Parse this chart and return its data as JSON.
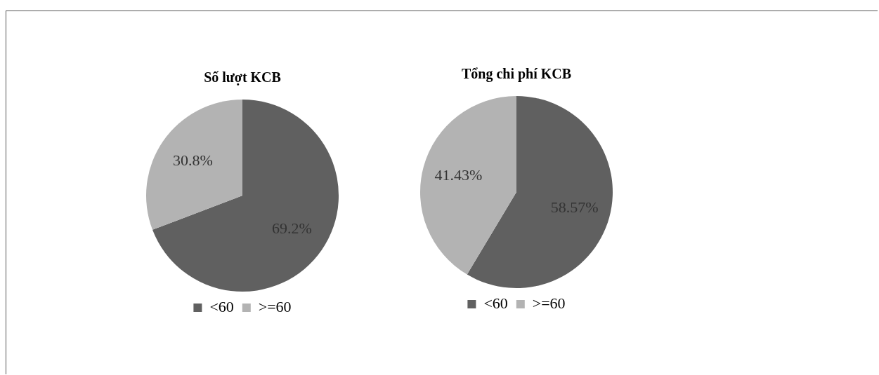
{
  "chart_data": [
    {
      "type": "pie",
      "title": "Số lượt KCB",
      "categories": [
        "<60",
        ">=60"
      ],
      "values": [
        69.2,
        30.8
      ],
      "colors": [
        "#606060",
        "#b3b3b3"
      ],
      "value_labels": [
        "69.2%",
        "30.8%"
      ],
      "legend": "bottom"
    },
    {
      "type": "pie",
      "title": "Tổng chi phí KCB",
      "categories": [
        "<60",
        ">=60"
      ],
      "values": [
        58.57,
        41.43
      ],
      "colors": [
        "#606060",
        "#b3b3b3"
      ],
      "value_labels": [
        "58.57%",
        "41.43%"
      ],
      "legend": "bottom"
    }
  ]
}
